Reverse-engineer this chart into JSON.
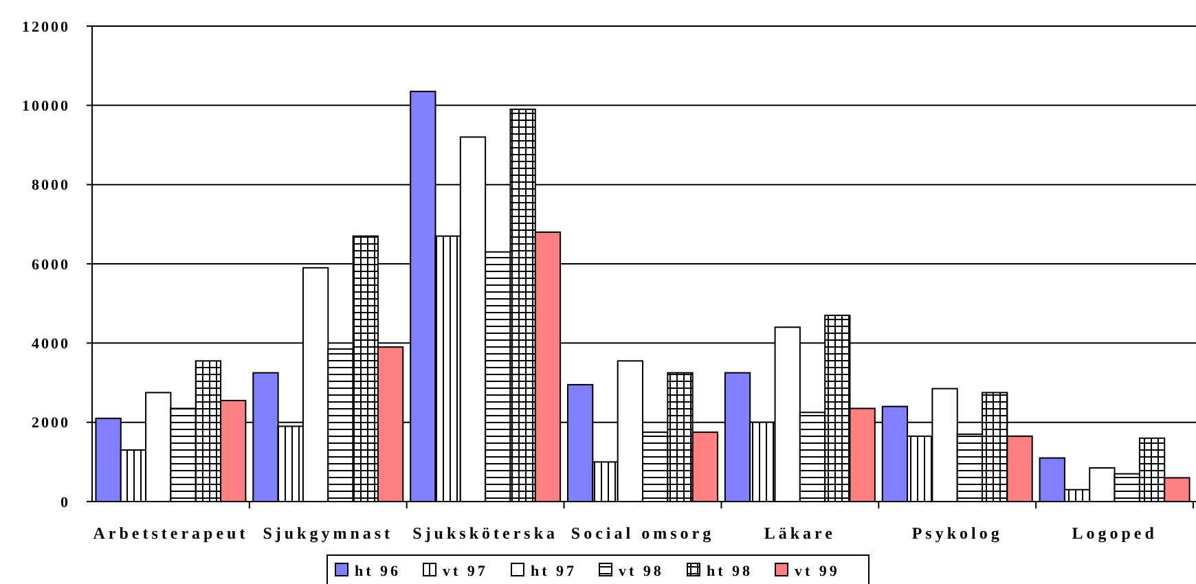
{
  "chart_data": {
    "type": "bar",
    "categories": [
      "Arbetsterapeut",
      "Sjukgymnast",
      "Sjuksköterska",
      "Social omsorg",
      "Läkare",
      "Psykolog",
      "Logoped"
    ],
    "series": [
      {
        "name": "ht 96",
        "color": "#8080ff",
        "values": [
          2100,
          3250,
          10350,
          2950,
          3250,
          2400,
          1100
        ]
      },
      {
        "name": "vt 97",
        "color": "#ffffff",
        "values": [
          1300,
          1900,
          6700,
          1000,
          2000,
          1650,
          300
        ]
      },
      {
        "name": "ht 97",
        "color": "#ffffff",
        "values": [
          2750,
          5900,
          9200,
          3550,
          4400,
          2850,
          850
        ]
      },
      {
        "name": "vt 98",
        "color": "#ffffff",
        "values": [
          2350,
          3850,
          6300,
          1750,
          2250,
          1700,
          700
        ]
      },
      {
        "name": "ht 98",
        "color": "#ffffff",
        "values": [
          3550,
          6700,
          9900,
          3250,
          4700,
          2750,
          1600
        ]
      },
      {
        "name": "vt 99",
        "color": "#ff8080",
        "values": [
          2550,
          3900,
          6800,
          1750,
          2350,
          1650,
          600
        ]
      }
    ],
    "ylim": [
      0,
      12000
    ],
    "yticks": [
      0,
      2000,
      4000,
      6000,
      8000,
      10000,
      12000
    ],
    "grid": "y",
    "legend": "bottom"
  }
}
